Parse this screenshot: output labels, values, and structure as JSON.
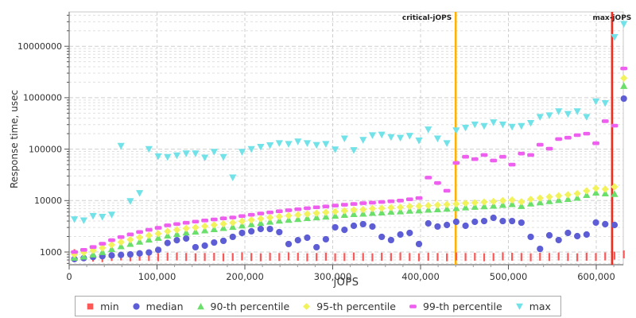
{
  "chart_data": {
    "type": "scatter",
    "title": "",
    "xlabel": "jOPS",
    "ylabel": "Response time, usec",
    "x_axis": {
      "ticks": [
        0,
        100000,
        200000,
        300000,
        400000,
        500000,
        600000
      ],
      "minor_step": 20000,
      "max": 630000
    },
    "y_axis": {
      "log": true,
      "ticks": [
        1000,
        10000,
        100000,
        1000000,
        10000000
      ],
      "min": 600,
      "max": 40000000
    },
    "grid": {
      "major_color": "#cfcfcf",
      "minor_color": "#e0e0e0",
      "axis_color": "#8a8a8a",
      "tick_color": "#555555",
      "text_color": "#333333"
    },
    "annotations": [
      {
        "label": "critical-jOPS",
        "x": 440000,
        "color": "#ffb200",
        "label_side": "left"
      },
      {
        "label": "max-jOPS",
        "x": 618000,
        "color": "#f42a1e",
        "label_side": "center"
      }
    ],
    "x": [
      6000,
      16600,
      27200,
      37800,
      48400,
      59000,
      69600,
      80200,
      90800,
      101400,
      112000,
      122600,
      133200,
      143800,
      154400,
      165000,
      175600,
      186200,
      196800,
      207400,
      218000,
      228600,
      239200,
      249800,
      260400,
      271000,
      281600,
      292200,
      302800,
      313400,
      324000,
      334600,
      345200,
      355800,
      366400,
      377000,
      387600,
      398200,
      408800,
      419400,
      430000,
      440600,
      451200,
      461800,
      472400,
      483000,
      493600,
      504200,
      514800,
      525400,
      536000,
      546600,
      557200,
      567800,
      578400,
      589000,
      599600,
      610200,
      620800,
      631400
    ],
    "series": [
      {
        "name": "min",
        "marker": "vline",
        "legend_marker": "square",
        "color": "#fb5858",
        "values": [
          950,
          820,
          780,
          760,
          800,
          820,
          790,
          810,
          800,
          790,
          810,
          820,
          800,
          790,
          800,
          810,
          790,
          800,
          820,
          800,
          790,
          810,
          800,
          820,
          810,
          790,
          800,
          810,
          790,
          800,
          820,
          800,
          790,
          810,
          800,
          820,
          800,
          790,
          810,
          800,
          790,
          820,
          800,
          810,
          790,
          800,
          820,
          810,
          800,
          790,
          810,
          800,
          820,
          800,
          790,
          810,
          800,
          820,
          850,
          900
        ]
      },
      {
        "name": "median",
        "marker": "circle",
        "legend_marker": "circle",
        "color": "#5d5dd5",
        "values": [
          730,
          760,
          800,
          830,
          860,
          880,
          900,
          940,
          980,
          1100,
          1500,
          1700,
          1830,
          1240,
          1330,
          1530,
          1650,
          1970,
          2350,
          2530,
          2810,
          2800,
          2440,
          1430,
          1700,
          1900,
          1240,
          1770,
          3020,
          2700,
          3240,
          3480,
          3130,
          1970,
          1710,
          2190,
          2350,
          1430,
          3600,
          3130,
          3350,
          3870,
          3240,
          3870,
          4000,
          4620,
          4000,
          4000,
          3720,
          1970,
          1150,
          2110,
          1710,
          2350,
          2040,
          2190,
          3740,
          3480,
          3350,
          960000
        ]
      },
      {
        "name": "90-th percentile",
        "marker": "triangle-up",
        "legend_marker": "triangle-up",
        "color": "#6bdf6b",
        "values": [
          780,
          820,
          900,
          1000,
          1150,
          1300,
          1450,
          1600,
          1750,
          1900,
          2100,
          2250,
          2400,
          2500,
          2650,
          2800,
          2950,
          3100,
          3300,
          3500,
          3700,
          3900,
          4100,
          4250,
          4400,
          4600,
          4750,
          4900,
          5100,
          5300,
          5500,
          5600,
          5800,
          5900,
          6100,
          6200,
          6400,
          6500,
          6700,
          6800,
          7000,
          7200,
          7400,
          7600,
          7800,
          8000,
          8300,
          8600,
          7900,
          8800,
          9300,
          9800,
          10300,
          10800,
          11400,
          12900,
          14400,
          13900,
          13500,
          1700000
        ]
      },
      {
        "name": "95-th percentile",
        "marker": "diamond",
        "legend_marker": "diamond",
        "color": "#f2f25c",
        "values": [
          900,
          980,
          1080,
          1200,
          1380,
          1560,
          1740,
          1920,
          2100,
          2280,
          2520,
          2700,
          2880,
          3000,
          3180,
          3360,
          3540,
          3720,
          3960,
          4200,
          4440,
          4680,
          4900,
          5100,
          5280,
          5500,
          5700,
          5900,
          6100,
          6350,
          6600,
          6700,
          7000,
          7100,
          7300,
          7400,
          7700,
          7800,
          8000,
          8200,
          8400,
          8600,
          8900,
          9100,
          9400,
          9600,
          10000,
          10300,
          9500,
          10600,
          11200,
          11800,
          12400,
          13000,
          13700,
          15500,
          17300,
          16700,
          18500,
          2400000
        ]
      },
      {
        "name": "99-th percentile",
        "marker": "hbar",
        "legend_marker": "hbar",
        "color": "#ef5fef",
        "values": [
          1000,
          1100,
          1250,
          1450,
          1700,
          1950,
          2200,
          2450,
          2700,
          2950,
          3300,
          3500,
          3700,
          3900,
          4100,
          4300,
          4500,
          4700,
          5000,
          5300,
          5600,
          5900,
          6200,
          6500,
          6800,
          7100,
          7400,
          7700,
          8000,
          8300,
          8600,
          8900,
          9100,
          9400,
          9700,
          10000,
          10600,
          11200,
          28000,
          22000,
          15500,
          54000,
          71000,
          64000,
          77000,
          60000,
          71000,
          50000,
          82000,
          77000,
          122000,
          102000,
          157000,
          167000,
          187000,
          200000,
          130000,
          350000,
          286000,
          3700000
        ]
      },
      {
        "name": "max",
        "marker": "triangle-down",
        "legend_marker": "triangle-down",
        "color": "#70e2e8",
        "values": [
          4300,
          4100,
          5000,
          4800,
          5300,
          115000,
          9700,
          13900,
          100000,
          72000,
          70000,
          75000,
          82000,
          82000,
          68000,
          88000,
          70000,
          28000,
          88000,
          100000,
          110000,
          118000,
          130000,
          125000,
          140000,
          130000,
          120000,
          125000,
          98000,
          160000,
          95000,
          150000,
          185000,
          190000,
          170000,
          165000,
          180000,
          146000,
          240000,
          160000,
          130000,
          230000,
          260000,
          300000,
          280000,
          330000,
          300000,
          270000,
          280000,
          320000,
          420000,
          450000,
          540000,
          480000,
          540000,
          420000,
          840000,
          780000,
          15000000,
          27000000
        ]
      }
    ]
  }
}
